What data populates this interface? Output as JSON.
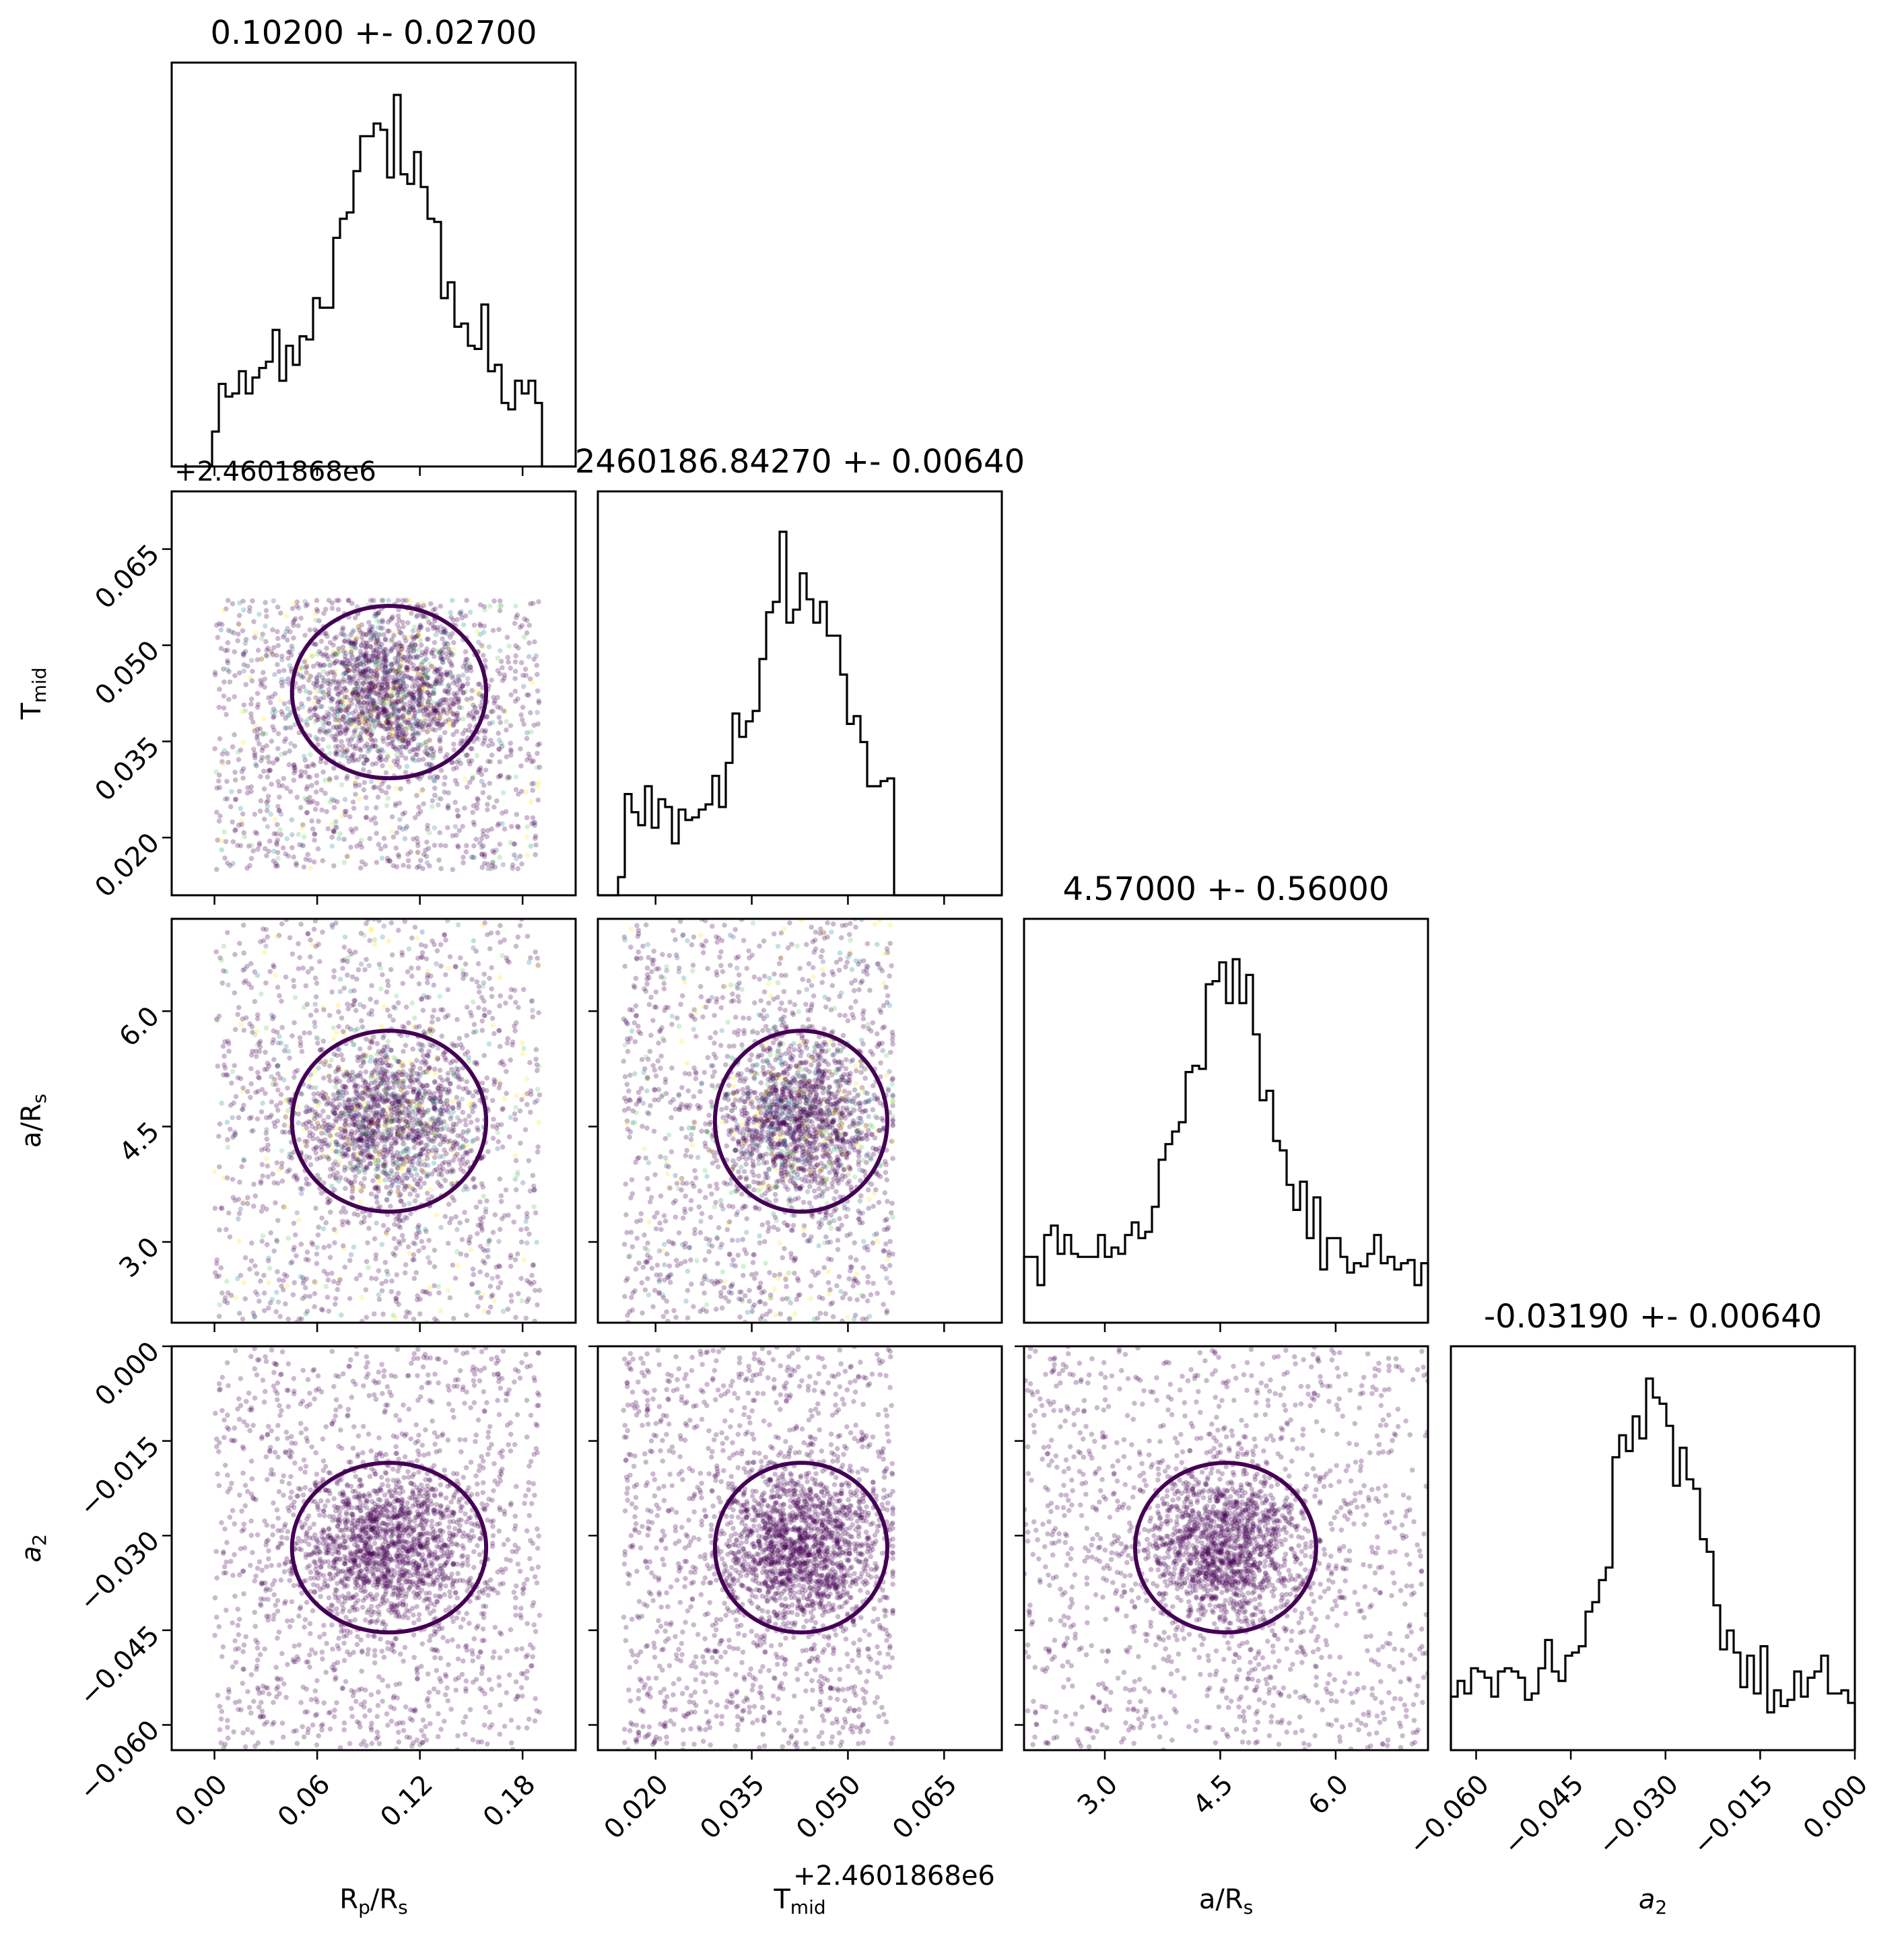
{
  "chart_data": {
    "type": "scatter",
    "kind": "corner-plot",
    "parameters": [
      {
        "key": "rp",
        "title": "0.10200 +- 0.02700",
        "label_main": "R",
        "label_sub": "p",
        "label_rest": "/R",
        "label_sub2": "s",
        "range": [
          -0.025,
          0.211
        ],
        "ticks": [
          0.0,
          0.06,
          0.12,
          0.18
        ],
        "tick_labels": [
          "0.00",
          "0.06",
          "0.12",
          "0.18"
        ],
        "offset": "",
        "center": 0.102,
        "width": 0.027,
        "support": [
          0.0,
          0.19
        ],
        "hist_peak_frac": 0.92
      },
      {
        "key": "tmid",
        "title": "2460186.84270 +- 0.00640",
        "label_main": "T",
        "label_sub": "mid",
        "label_rest": "",
        "label_sub2": "",
        "range": [
          0.011,
          0.074
        ],
        "ticks": [
          0.02,
          0.035,
          0.05,
          0.065
        ],
        "tick_labels": [
          "0.020",
          "0.035",
          "0.050",
          "0.065"
        ],
        "offset": "+2.4601868e6",
        "center": 0.0427,
        "width": 0.0064,
        "support": [
          0.015,
          0.057
        ],
        "hist_peak_frac": 0.9
      },
      {
        "key": "ars",
        "title": "4.57000 +- 0.56000",
        "label_main": "a/R",
        "label_sub": "s",
        "label_rest": "",
        "label_sub2": "",
        "range": [
          1.95,
          7.2
        ],
        "ticks": [
          3.0,
          4.5,
          6.0
        ],
        "tick_labels": [
          "3.0",
          "4.5",
          "6.0"
        ],
        "offset": "",
        "center": 4.57,
        "width": 0.56,
        "support": [
          1.95,
          7.2
        ],
        "hist_peak_frac": 0.9
      },
      {
        "key": "a2",
        "title": "-0.03190 +- 0.00640",
        "label_main": "a",
        "label_sub": "2",
        "label_rest": "",
        "label_sub2": "",
        "label_italic": true,
        "range": [
          -0.064,
          0.0
        ],
        "ticks": [
          -0.06,
          -0.045,
          -0.03,
          -0.015,
          0.0
        ],
        "tick_labels": [
          "−0.060",
          "−0.045",
          "−0.030",
          "−0.015",
          "0.000"
        ],
        "offset": "",
        "center": -0.0319,
        "width": 0.0064,
        "support": [
          -0.064,
          0.0
        ],
        "hist_peak_frac": 0.92
      }
    ],
    "y_tick_labels_rows": {
      "tmid": [
        "0.020",
        "0.035",
        "0.050",
        "0.065"
      ],
      "ars": [
        "3.0",
        "4.5",
        "6.0"
      ],
      "a2": [
        "−0.060",
        "−0.045",
        "−0.030",
        "−0.015",
        "0.000"
      ]
    },
    "y_offset_label": "+2.4601868e6",
    "colors": {
      "scatter": "#440154",
      "contour": "#440154",
      "scatter_alt": [
        "#21918c",
        "#5ec962",
        "#fde725",
        "#3b528b"
      ]
    }
  }
}
